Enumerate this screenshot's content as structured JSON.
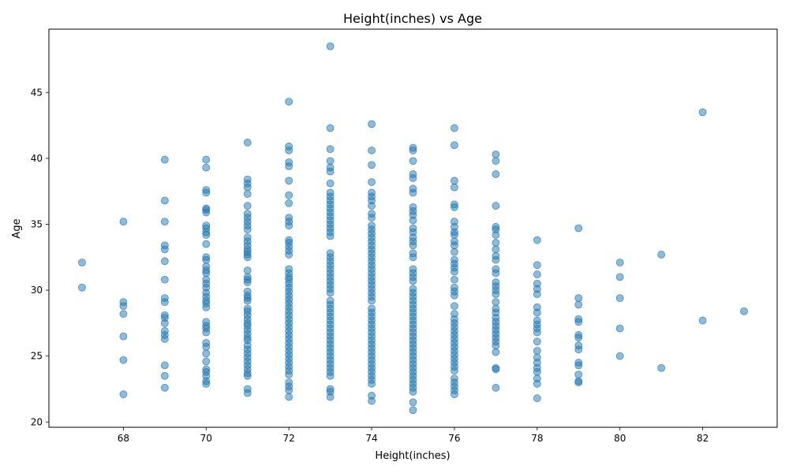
{
  "chart_data": {
    "type": "scatter",
    "title": "Height(inches) vs Age",
    "xlabel": "Height(inches)",
    "ylabel": "Age",
    "xlim": [
      66.2,
      83.8
    ],
    "ylim": [
      19.6,
      49.8
    ],
    "xticks": [
      "68",
      "70",
      "72",
      "74",
      "76",
      "78",
      "80",
      "82"
    ],
    "yticks": [
      "20",
      "25",
      "30",
      "35",
      "40",
      "45"
    ],
    "grid": false,
    "legend": "none",
    "marker_color": "#1f77b4",
    "marker_opacity": 0.5,
    "points": [
      [
        67,
        32.1
      ],
      [
        67,
        30.2
      ],
      [
        68,
        35.2
      ],
      [
        68,
        29.1
      ],
      [
        68,
        28.8
      ],
      [
        68,
        28.2
      ],
      [
        68,
        26.5
      ],
      [
        68,
        24.7
      ],
      [
        68,
        22.1
      ],
      [
        69,
        39.9
      ],
      [
        69,
        36.8
      ],
      [
        69,
        35.2
      ],
      [
        69,
        33.4
      ],
      [
        69,
        33.1
      ],
      [
        69,
        32.2
      ],
      [
        69,
        30.8
      ],
      [
        69,
        29.4
      ],
      [
        69,
        29.1
      ],
      [
        69,
        28.1
      ],
      [
        69,
        27.9
      ],
      [
        69,
        27.5
      ],
      [
        69,
        26.9
      ],
      [
        69,
        26.6
      ],
      [
        69,
        26.3
      ],
      [
        69,
        24.3
      ],
      [
        69,
        23.5
      ],
      [
        69,
        22.6
      ],
      [
        70,
        39.9
      ],
      [
        70,
        39.3
      ],
      [
        70,
        37.6
      ],
      [
        70,
        37.4
      ],
      [
        70,
        36.2
      ],
      [
        70,
        36.1
      ],
      [
        70,
        35.9
      ],
      [
        70,
        34.9
      ],
      [
        70,
        34.7
      ],
      [
        70,
        34.4
      ],
      [
        70,
        34.2
      ],
      [
        70,
        33.5
      ],
      [
        70,
        32.5
      ],
      [
        70,
        32.3
      ],
      [
        70,
        31.8
      ],
      [
        70,
        31.5
      ],
      [
        70,
        31.3
      ],
      [
        70,
        30.8
      ],
      [
        70,
        30.5
      ],
      [
        70,
        30.2
      ],
      [
        70,
        29.8
      ],
      [
        70,
        29.5
      ],
      [
        70,
        29.2
      ],
      [
        70,
        29.0
      ],
      [
        70,
        28.7
      ],
      [
        70,
        27.6
      ],
      [
        70,
        27.3
      ],
      [
        70,
        27.1
      ],
      [
        70,
        26.8
      ],
      [
        70,
        26.0
      ],
      [
        70,
        25.7
      ],
      [
        70,
        25.2
      ],
      [
        70,
        24.6
      ],
      [
        70,
        24.0
      ],
      [
        70,
        23.8
      ],
      [
        70,
        23.5
      ],
      [
        70,
        23.1
      ],
      [
        70,
        22.9
      ],
      [
        71,
        41.2
      ],
      [
        71,
        38.4
      ],
      [
        71,
        38.1
      ],
      [
        71,
        37.8
      ],
      [
        71,
        37.3
      ],
      [
        71,
        36.4
      ],
      [
        71,
        35.8
      ],
      [
        71,
        35.5
      ],
      [
        71,
        35.2
      ],
      [
        71,
        34.9
      ],
      [
        71,
        34.6
      ],
      [
        71,
        34.0
      ],
      [
        71,
        33.7
      ],
      [
        71,
        33.4
      ],
      [
        71,
        33.1
      ],
      [
        71,
        32.9
      ],
      [
        71,
        32.7
      ],
      [
        71,
        32.5
      ],
      [
        71,
        31.5
      ],
      [
        71,
        31.0
      ],
      [
        71,
        30.8
      ],
      [
        71,
        30.6
      ],
      [
        71,
        29.9
      ],
      [
        71,
        29.6
      ],
      [
        71,
        29.4
      ],
      [
        71,
        29.2
      ],
      [
        71,
        28.6
      ],
      [
        71,
        28.4
      ],
      [
        71,
        28.1
      ],
      [
        71,
        27.8
      ],
      [
        71,
        27.5
      ],
      [
        71,
        27.3
      ],
      [
        71,
        27.0
      ],
      [
        71,
        26.7
      ],
      [
        71,
        26.4
      ],
      [
        71,
        26.2
      ],
      [
        71,
        25.8
      ],
      [
        71,
        25.5
      ],
      [
        71,
        25.2
      ],
      [
        71,
        24.9
      ],
      [
        71,
        24.6
      ],
      [
        71,
        24.3
      ],
      [
        71,
        24.0
      ],
      [
        71,
        23.7
      ],
      [
        71,
        23.5
      ],
      [
        71,
        22.5
      ],
      [
        71,
        22.2
      ],
      [
        72,
        44.3
      ],
      [
        72,
        40.9
      ],
      [
        72,
        40.6
      ],
      [
        72,
        39.7
      ],
      [
        72,
        39.4
      ],
      [
        72,
        38.3
      ],
      [
        72,
        37.2
      ],
      [
        72,
        36.6
      ],
      [
        72,
        35.5
      ],
      [
        72,
        35.2
      ],
      [
        72,
        34.9
      ],
      [
        72,
        33.8
      ],
      [
        72,
        33.6
      ],
      [
        72,
        33.3
      ],
      [
        72,
        33.0
      ],
      [
        72,
        32.7
      ],
      [
        72,
        31.6
      ],
      [
        72,
        31.3
      ],
      [
        72,
        31.0
      ],
      [
        72,
        30.8
      ],
      [
        72,
        30.5
      ],
      [
        72,
        30.2
      ],
      [
        72,
        29.9
      ],
      [
        72,
        29.6
      ],
      [
        72,
        29.3
      ],
      [
        72,
        29.0
      ],
      [
        72,
        28.7
      ],
      [
        72,
        28.4
      ],
      [
        72,
        28.1
      ],
      [
        72,
        27.8
      ],
      [
        72,
        27.5
      ],
      [
        72,
        27.2
      ],
      [
        72,
        26.9
      ],
      [
        72,
        26.6
      ],
      [
        72,
        26.3
      ],
      [
        72,
        26.0
      ],
      [
        72,
        25.7
      ],
      [
        72,
        25.4
      ],
      [
        72,
        25.1
      ],
      [
        72,
        24.8
      ],
      [
        72,
        24.5
      ],
      [
        72,
        24.2
      ],
      [
        72,
        23.9
      ],
      [
        72,
        23.6
      ],
      [
        72,
        23.0
      ],
      [
        72,
        22.7
      ],
      [
        72,
        22.4
      ],
      [
        72,
        21.9
      ],
      [
        73,
        48.5
      ],
      [
        73,
        42.3
      ],
      [
        73,
        40.7
      ],
      [
        73,
        39.8
      ],
      [
        73,
        39.3
      ],
      [
        73,
        39.0
      ],
      [
        73,
        38.1
      ],
      [
        73,
        37.4
      ],
      [
        73,
        37.1
      ],
      [
        73,
        36.8
      ],
      [
        73,
        36.5
      ],
      [
        73,
        36.2
      ],
      [
        73,
        35.9
      ],
      [
        73,
        35.6
      ],
      [
        73,
        35.3
      ],
      [
        73,
        35.0
      ],
      [
        73,
        34.7
      ],
      [
        73,
        34.4
      ],
      [
        73,
        34.1
      ],
      [
        73,
        32.8
      ],
      [
        73,
        32.5
      ],
      [
        73,
        32.2
      ],
      [
        73,
        31.9
      ],
      [
        73,
        31.6
      ],
      [
        73,
        31.3
      ],
      [
        73,
        31.0
      ],
      [
        73,
        30.7
      ],
      [
        73,
        30.4
      ],
      [
        73,
        30.1
      ],
      [
        73,
        29.8
      ],
      [
        73,
        29.2
      ],
      [
        73,
        28.9
      ],
      [
        73,
        28.6
      ],
      [
        73,
        28.3
      ],
      [
        73,
        28.0
      ],
      [
        73,
        27.7
      ],
      [
        73,
        27.4
      ],
      [
        73,
        27.1
      ],
      [
        73,
        26.8
      ],
      [
        73,
        26.5
      ],
      [
        73,
        26.2
      ],
      [
        73,
        25.9
      ],
      [
        73,
        25.6
      ],
      [
        73,
        25.3
      ],
      [
        73,
        25.0
      ],
      [
        73,
        24.7
      ],
      [
        73,
        24.4
      ],
      [
        73,
        24.1
      ],
      [
        73,
        23.8
      ],
      [
        73,
        23.5
      ],
      [
        73,
        22.5
      ],
      [
        73,
        22.3
      ],
      [
        73,
        21.9
      ],
      [
        74,
        42.6
      ],
      [
        74,
        40.6
      ],
      [
        74,
        39.5
      ],
      [
        74,
        38.2
      ],
      [
        74,
        37.4
      ],
      [
        74,
        37.1
      ],
      [
        74,
        36.8
      ],
      [
        74,
        36.4
      ],
      [
        74,
        35.8
      ],
      [
        74,
        35.5
      ],
      [
        74,
        34.9
      ],
      [
        74,
        34.6
      ],
      [
        74,
        34.3
      ],
      [
        74,
        34.0
      ],
      [
        74,
        33.7
      ],
      [
        74,
        33.4
      ],
      [
        74,
        33.1
      ],
      [
        74,
        32.8
      ],
      [
        74,
        32.5
      ],
      [
        74,
        32.2
      ],
      [
        74,
        31.9
      ],
      [
        74,
        31.6
      ],
      [
        74,
        31.3
      ],
      [
        74,
        31.0
      ],
      [
        74,
        30.7
      ],
      [
        74,
        30.4
      ],
      [
        74,
        30.1
      ],
      [
        74,
        29.8
      ],
      [
        74,
        29.5
      ],
      [
        74,
        29.2
      ],
      [
        74,
        28.6
      ],
      [
        74,
        28.3
      ],
      [
        74,
        28.0
      ],
      [
        74,
        27.7
      ],
      [
        74,
        27.4
      ],
      [
        74,
        27.1
      ],
      [
        74,
        26.8
      ],
      [
        74,
        26.5
      ],
      [
        74,
        26.2
      ],
      [
        74,
        25.9
      ],
      [
        74,
        25.6
      ],
      [
        74,
        25.3
      ],
      [
        74,
        25.0
      ],
      [
        74,
        24.7
      ],
      [
        74,
        24.4
      ],
      [
        74,
        24.1
      ],
      [
        74,
        23.8
      ],
      [
        74,
        23.5
      ],
      [
        74,
        23.2
      ],
      [
        74,
        22.9
      ],
      [
        74,
        22.0
      ],
      [
        74,
        21.6
      ],
      [
        75,
        40.8
      ],
      [
        75,
        40.6
      ],
      [
        75,
        39.8
      ],
      [
        75,
        38.8
      ],
      [
        75,
        38.5
      ],
      [
        75,
        37.7
      ],
      [
        75,
        37.4
      ],
      [
        75,
        36.3
      ],
      [
        75,
        36.0
      ],
      [
        75,
        35.7
      ],
      [
        75,
        35.3
      ],
      [
        75,
        34.7
      ],
      [
        75,
        34.4
      ],
      [
        75,
        34.0
      ],
      [
        75,
        33.7
      ],
      [
        75,
        33.4
      ],
      [
        75,
        32.8
      ],
      [
        75,
        32.5
      ],
      [
        75,
        31.6
      ],
      [
        75,
        31.3
      ],
      [
        75,
        31.0
      ],
      [
        75,
        30.7
      ],
      [
        75,
        30.1
      ],
      [
        75,
        29.8
      ],
      [
        75,
        29.5
      ],
      [
        75,
        29.2
      ],
      [
        75,
        28.9
      ],
      [
        75,
        28.6
      ],
      [
        75,
        28.3
      ],
      [
        75,
        28.0
      ],
      [
        75,
        27.7
      ],
      [
        75,
        27.4
      ],
      [
        75,
        27.1
      ],
      [
        75,
        26.8
      ],
      [
        75,
        26.5
      ],
      [
        75,
        26.2
      ],
      [
        75,
        25.9
      ],
      [
        75,
        25.6
      ],
      [
        75,
        25.3
      ],
      [
        75,
        25.0
      ],
      [
        75,
        24.7
      ],
      [
        75,
        24.4
      ],
      [
        75,
        24.1
      ],
      [
        75,
        23.8
      ],
      [
        75,
        23.5
      ],
      [
        75,
        23.2
      ],
      [
        75,
        22.9
      ],
      [
        75,
        22.6
      ],
      [
        75,
        22.3
      ],
      [
        75,
        21.5
      ],
      [
        75,
        20.9
      ],
      [
        76,
        42.3
      ],
      [
        76,
        41.0
      ],
      [
        76,
        38.3
      ],
      [
        76,
        37.8
      ],
      [
        76,
        36.5
      ],
      [
        76,
        36.3
      ],
      [
        76,
        35.2
      ],
      [
        76,
        34.8
      ],
      [
        76,
        34.4
      ],
      [
        76,
        34.2
      ],
      [
        76,
        33.7
      ],
      [
        76,
        33.4
      ],
      [
        76,
        32.9
      ],
      [
        76,
        32.3
      ],
      [
        76,
        32.0
      ],
      [
        76,
        31.7
      ],
      [
        76,
        31.4
      ],
      [
        76,
        30.8
      ],
      [
        76,
        30.2
      ],
      [
        76,
        29.9
      ],
      [
        76,
        29.6
      ],
      [
        76,
        28.8
      ],
      [
        76,
        28.2
      ],
      [
        76,
        27.8
      ],
      [
        76,
        27.5
      ],
      [
        76,
        27.2
      ],
      [
        76,
        26.9
      ],
      [
        76,
        26.6
      ],
      [
        76,
        26.3
      ],
      [
        76,
        26.0
      ],
      [
        76,
        25.7
      ],
      [
        76,
        25.4
      ],
      [
        76,
        25.1
      ],
      [
        76,
        24.8
      ],
      [
        76,
        24.5
      ],
      [
        76,
        24.2
      ],
      [
        76,
        23.9
      ],
      [
        76,
        23.3
      ],
      [
        76,
        23.0
      ],
      [
        76,
        22.7
      ],
      [
        76,
        22.4
      ],
      [
        76,
        22.1
      ],
      [
        77,
        40.3
      ],
      [
        77,
        39.8
      ],
      [
        77,
        38.8
      ],
      [
        77,
        36.4
      ],
      [
        77,
        34.8
      ],
      [
        77,
        34.6
      ],
      [
        77,
        34.2
      ],
      [
        77,
        33.6
      ],
      [
        77,
        33.1
      ],
      [
        77,
        32.6
      ],
      [
        77,
        32.3
      ],
      [
        77,
        31.6
      ],
      [
        77,
        31.3
      ],
      [
        77,
        30.6
      ],
      [
        77,
        30.3
      ],
      [
        77,
        30.0
      ],
      [
        77,
        29.7
      ],
      [
        77,
        29.1
      ],
      [
        77,
        28.6
      ],
      [
        77,
        28.3
      ],
      [
        77,
        27.9
      ],
      [
        77,
        27.6
      ],
      [
        77,
        27.3
      ],
      [
        77,
        27.0
      ],
      [
        77,
        26.7
      ],
      [
        77,
        26.4
      ],
      [
        77,
        26.1
      ],
      [
        77,
        25.8
      ],
      [
        77,
        25.3
      ],
      [
        77,
        24.1
      ],
      [
        77,
        24.0
      ],
      [
        77,
        22.6
      ],
      [
        78,
        33.8
      ],
      [
        78,
        31.9
      ],
      [
        78,
        31.2
      ],
      [
        78,
        30.5
      ],
      [
        78,
        30.1
      ],
      [
        78,
        29.7
      ],
      [
        78,
        28.7
      ],
      [
        78,
        28.3
      ],
      [
        78,
        27.7
      ],
      [
        78,
        27.4
      ],
      [
        78,
        27.1
      ],
      [
        78,
        26.8
      ],
      [
        78,
        26.1
      ],
      [
        78,
        25.4
      ],
      [
        78,
        24.9
      ],
      [
        78,
        24.5
      ],
      [
        78,
        24.1
      ],
      [
        78,
        23.8
      ],
      [
        78,
        23.3
      ],
      [
        78,
        22.9
      ],
      [
        78,
        21.8
      ],
      [
        79,
        34.7
      ],
      [
        79,
        29.4
      ],
      [
        79,
        28.9
      ],
      [
        79,
        27.8
      ],
      [
        79,
        27.6
      ],
      [
        79,
        26.6
      ],
      [
        79,
        26.4
      ],
      [
        79,
        25.8
      ],
      [
        79,
        25.5
      ],
      [
        79,
        24.5
      ],
      [
        79,
        24.3
      ],
      [
        79,
        23.6
      ],
      [
        79,
        23.1
      ],
      [
        79,
        23.0
      ],
      [
        80,
        32.1
      ],
      [
        80,
        31.0
      ],
      [
        80,
        29.4
      ],
      [
        80,
        27.1
      ],
      [
        80,
        25.0
      ],
      [
        81,
        32.7
      ],
      [
        81,
        24.1
      ],
      [
        82,
        43.5
      ],
      [
        82,
        27.7
      ],
      [
        83,
        28.4
      ]
    ]
  }
}
